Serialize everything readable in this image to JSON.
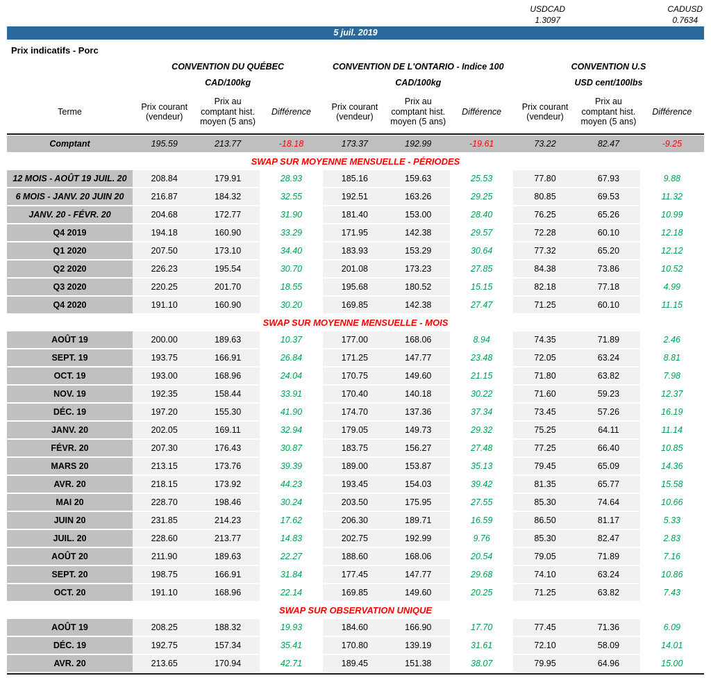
{
  "colors": {
    "banner_blue": "#2b689c",
    "negative_red": "#ff0000",
    "positive_green": "#00a050",
    "label_gray": "#c0c0c0",
    "comptant_gray": "#bfbfbf",
    "price_col_gray": "#f1f1f1"
  },
  "fx": {
    "usdcad_label": "USDCAD",
    "usdcad_value": "1.3097",
    "cadusd_label": "CADUSD",
    "cadusd_value": "0.7634"
  },
  "banner": {
    "date": "5 juil. 2019"
  },
  "title": "Prix indicatifs - Porc",
  "table": {
    "groups": [
      {
        "title": "CONVENTION DU QUÉBEC",
        "unit": "CAD/100kg"
      },
      {
        "title": "CONVENTION DE L'ONTARIO - Indice 100",
        "unit": "CAD/100kg"
      },
      {
        "title": "CONVENTION U.S",
        "unit": "USD cent/100lbs"
      }
    ],
    "headers": {
      "terme": "Terme",
      "prix_courant": "Prix courant (vendeur)",
      "prix_comptant": "Prix au comptant hist. moyen (5 ans)",
      "difference": "Différence"
    },
    "comptant": {
      "label": "Comptant",
      "values": [
        "195.59",
        "213.77",
        "-18.18",
        "173.37",
        "192.99",
        "-19.61",
        "73.22",
        "82.47",
        "-9.25"
      ]
    },
    "sections": [
      {
        "title": "SWAP SUR MOYENNE MENSUELLE - PÉRIODES",
        "rows": [
          {
            "label": "12 MOIS -  AOÛT 19 JUIL. 20",
            "values": [
              "208.84",
              "179.91",
              "28.93",
              "185.16",
              "159.63",
              "25.53",
              "77.80",
              "67.93",
              "9.88"
            ]
          },
          {
            "label": "6 MOIS -  JANV. 20 JUIN 20",
            "values": [
              "216.87",
              "184.32",
              "32.55",
              "192.51",
              "163.26",
              "29.25",
              "80.85",
              "69.53",
              "11.32"
            ]
          },
          {
            "label": "JANV. 20 -  FÉVR. 20",
            "values": [
              "204.68",
              "172.77",
              "31.90",
              "181.40",
              "153.00",
              "28.40",
              "76.25",
              "65.26",
              "10.99"
            ]
          },
          {
            "label": "Q4 2019",
            "values": [
              "194.18",
              "160.90",
              "33.29",
              "171.95",
              "142.38",
              "29.57",
              "72.28",
              "60.10",
              "12.18"
            ]
          },
          {
            "label": "Q1 2020",
            "values": [
              "207.50",
              "173.10",
              "34.40",
              "183.93",
              "153.29",
              "30.64",
              "77.32",
              "65.20",
              "12.12"
            ]
          },
          {
            "label": "Q2 2020",
            "values": [
              "226.23",
              "195.54",
              "30.70",
              "201.08",
              "173.23",
              "27.85",
              "84.38",
              "73.86",
              "10.52"
            ]
          },
          {
            "label": "Q3 2020",
            "values": [
              "220.25",
              "201.70",
              "18.55",
              "195.68",
              "180.52",
              "15.15",
              "82.18",
              "77.18",
              "4.99"
            ]
          },
          {
            "label": "Q4 2020",
            "values": [
              "191.10",
              "160.90",
              "30.20",
              "169.85",
              "142.38",
              "27.47",
              "71.25",
              "60.10",
              "11.15"
            ]
          }
        ]
      },
      {
        "title": "SWAP SUR MOYENNE MENSUELLE - MOIS",
        "rows": [
          {
            "label": "AOÛT 19",
            "values": [
              "200.00",
              "189.63",
              "10.37",
              "177.00",
              "168.06",
              "8.94",
              "74.35",
              "71.89",
              "2.46"
            ]
          },
          {
            "label": "SEPT. 19",
            "values": [
              "193.75",
              "166.91",
              "26.84",
              "171.25",
              "147.77",
              "23.48",
              "72.05",
              "63.24",
              "8.81"
            ]
          },
          {
            "label": "OCT. 19",
            "values": [
              "193.00",
              "168.96",
              "24.04",
              "170.75",
              "149.60",
              "21.15",
              "71.80",
              "63.82",
              "7.98"
            ]
          },
          {
            "label": "NOV. 19",
            "values": [
              "192.35",
              "158.44",
              "33.91",
              "170.40",
              "140.18",
              "30.22",
              "71.60",
              "59.23",
              "12.37"
            ]
          },
          {
            "label": "DÉC. 19",
            "values": [
              "197.20",
              "155.30",
              "41.90",
              "174.70",
              "137.36",
              "37.34",
              "73.45",
              "57.26",
              "16.19"
            ]
          },
          {
            "label": "JANV. 20",
            "values": [
              "202.05",
              "169.11",
              "32.94",
              "179.05",
              "149.73",
              "29.32",
              "75.25",
              "64.11",
              "11.14"
            ]
          },
          {
            "label": "FÉVR. 20",
            "values": [
              "207.30",
              "176.43",
              "30.87",
              "183.75",
              "156.27",
              "27.48",
              "77.25",
              "66.40",
              "10.85"
            ]
          },
          {
            "label": "MARS 20",
            "values": [
              "213.15",
              "173.76",
              "39.39",
              "189.00",
              "153.87",
              "35.13",
              "79.45",
              "65.09",
              "14.36"
            ]
          },
          {
            "label": "AVR. 20",
            "values": [
              "218.15",
              "173.92",
              "44.23",
              "193.45",
              "154.03",
              "39.42",
              "81.35",
              "65.77",
              "15.58"
            ]
          },
          {
            "label": "MAI 20",
            "values": [
              "228.70",
              "198.46",
              "30.24",
              "203.50",
              "175.95",
              "27.55",
              "85.30",
              "74.64",
              "10.66"
            ]
          },
          {
            "label": "JUIN 20",
            "values": [
              "231.85",
              "214.23",
              "17.62",
              "206.30",
              "189.71",
              "16.59",
              "86.50",
              "81.17",
              "5.33"
            ]
          },
          {
            "label": "JUIL. 20",
            "values": [
              "228.60",
              "213.77",
              "14.83",
              "202.75",
              "192.99",
              "9.76",
              "85.30",
              "82.47",
              "2.83"
            ]
          },
          {
            "label": "AOÛT 20",
            "values": [
              "211.90",
              "189.63",
              "22.27",
              "188.60",
              "168.06",
              "20.54",
              "79.05",
              "71.89",
              "7.16"
            ]
          },
          {
            "label": "SEPT. 20",
            "values": [
              "198.75",
              "166.91",
              "31.84",
              "177.45",
              "147.77",
              "29.68",
              "74.10",
              "63.24",
              "10.86"
            ]
          },
          {
            "label": "OCT. 20",
            "values": [
              "191.10",
              "168.96",
              "22.14",
              "169.85",
              "149.60",
              "20.25",
              "71.25",
              "63.82",
              "7.43"
            ]
          }
        ]
      },
      {
        "title": "SWAP SUR OBSERVATION UNIQUE",
        "rows": [
          {
            "label": "AOÛT 19",
            "values": [
              "208.25",
              "188.32",
              "19.93",
              "184.60",
              "166.90",
              "17.70",
              "77.45",
              "71.36",
              "6.09"
            ]
          },
          {
            "label": "DÉC. 19",
            "values": [
              "192.75",
              "157.34",
              "35.41",
              "170.80",
              "139.19",
              "31.61",
              "72.10",
              "58.09",
              "14.01"
            ]
          },
          {
            "label": "AVR. 20",
            "values": [
              "213.65",
              "170.94",
              "42.71",
              "189.45",
              "151.38",
              "38.07",
              "79.95",
              "64.96",
              "15.00"
            ]
          }
        ]
      }
    ]
  }
}
